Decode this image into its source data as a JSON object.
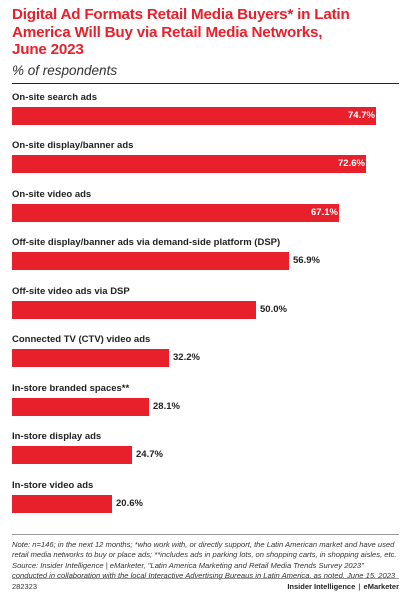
{
  "header": {
    "title": "Digital Ad Formats Retail Media Buyers* in Latin\nAmerica Will Buy via Retail Media Networks,\nJune 2023",
    "subtitle": "% of respondents"
  },
  "chart_data": {
    "type": "bar",
    "orientation": "horizontal",
    "title": "Digital Ad Formats Retail Media Buyers* in Latin America Will Buy via Retail Media Networks, June 2023",
    "subtitle": "% of respondents",
    "xlim": [
      0,
      74.7
    ],
    "grid": false,
    "categories": [
      "On-site search ads",
      "On-site display/banner ads",
      "On-site video ads",
      "Off-site display/banner ads via demand-side platform (DSP)",
      "Off-site video ads via DSP",
      "Connected TV (CTV) video ads",
      "In-store branded spaces**",
      "In-store display ads",
      "In-store video ads"
    ],
    "values": [
      74.7,
      72.6,
      67.1,
      56.9,
      50.0,
      32.2,
      28.1,
      24.7,
      20.6
    ],
    "value_labels": [
      "74.7%",
      "72.6%",
      "67.1%",
      "56.9%",
      "50.0%",
      "32.2%",
      "28.1%",
      "24.7%",
      "20.6%"
    ],
    "bar_color": "#e8202b"
  },
  "note": "Note: n=146; in the next 12 months; *who work with, or directly support, the Latin American market and have used retail media networks to buy or place ads; **includes ads in parking lots, on shopping carts, in shopping aisles, etc.\nSource: Insider Intelligence | eMarketer, \"Latin America Marketing and Retail Media Trends Survey 2023\" conducted in collaboration with the local Interactive Advertising Bureaus in Latin America, as noted, June 15, 2023",
  "footer": {
    "id": "282323",
    "brand_left": "Insider Intelligence",
    "brand_sep": "|",
    "brand_right": "eMarketer"
  }
}
